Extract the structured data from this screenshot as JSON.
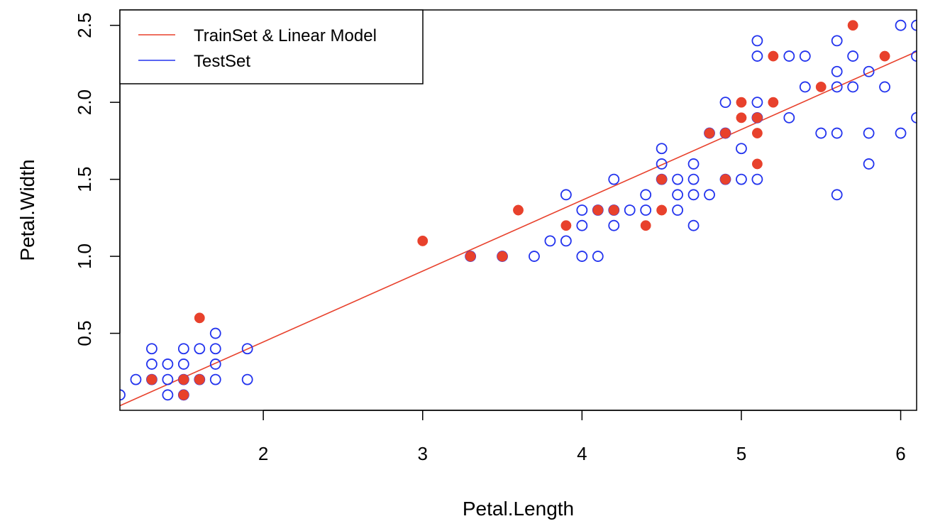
{
  "chart_data": {
    "type": "scatter",
    "title": "",
    "xlabel": "Petal.Length",
    "ylabel": "Petal.Width",
    "xlim": [
      1.1,
      6.1
    ],
    "ylim": [
      0.0,
      2.6
    ],
    "xticks": [
      2,
      3,
      4,
      5,
      6
    ],
    "yticks": [
      0.5,
      1.0,
      1.5,
      2.0,
      2.5
    ],
    "xtick_labels": [
      "2",
      "3",
      "4",
      "5",
      "6"
    ],
    "ytick_labels": [
      "0.5",
      "1.0",
      "1.5",
      "2.0",
      "2.5"
    ],
    "grid": false,
    "legend": {
      "position": "top-left",
      "entries": [
        {
          "label": "TrainSet & Linear Model",
          "color": "#e8412c"
        },
        {
          "label": "TestSet",
          "color": "#2233ee"
        }
      ]
    },
    "series": [
      {
        "name": "TrainSet & Linear Model",
        "marker": "filled-circle",
        "color": "#e8412c",
        "points": [
          [
            1.3,
            0.2
          ],
          [
            1.5,
            0.2
          ],
          [
            1.5,
            0.1
          ],
          [
            1.6,
            0.2
          ],
          [
            1.6,
            0.6
          ],
          [
            3.0,
            1.1
          ],
          [
            3.3,
            1.0
          ],
          [
            3.5,
            1.0
          ],
          [
            3.6,
            1.3
          ],
          [
            3.9,
            1.2
          ],
          [
            4.1,
            1.3
          ],
          [
            4.2,
            1.3
          ],
          [
            4.4,
            1.2
          ],
          [
            4.5,
            1.5
          ],
          [
            4.5,
            1.3
          ],
          [
            4.8,
            1.8
          ],
          [
            4.9,
            1.8
          ],
          [
            4.9,
            1.5
          ],
          [
            5.0,
            2.0
          ],
          [
            5.0,
            1.9
          ],
          [
            5.1,
            1.9
          ],
          [
            5.1,
            1.8
          ],
          [
            5.1,
            1.6
          ],
          [
            5.2,
            2.3
          ],
          [
            5.2,
            2.0
          ],
          [
            5.5,
            2.1
          ],
          [
            5.7,
            2.5
          ],
          [
            5.9,
            2.3
          ]
        ]
      },
      {
        "name": "TestSet",
        "marker": "open-circle",
        "color": "#2233ee",
        "points": [
          [
            1.1,
            0.1
          ],
          [
            1.2,
            0.2
          ],
          [
            1.3,
            0.2
          ],
          [
            1.3,
            0.3
          ],
          [
            1.3,
            0.4
          ],
          [
            1.4,
            0.1
          ],
          [
            1.4,
            0.2
          ],
          [
            1.4,
            0.3
          ],
          [
            1.5,
            0.1
          ],
          [
            1.5,
            0.2
          ],
          [
            1.5,
            0.3
          ],
          [
            1.5,
            0.4
          ],
          [
            1.6,
            0.2
          ],
          [
            1.6,
            0.4
          ],
          [
            1.7,
            0.2
          ],
          [
            1.7,
            0.3
          ],
          [
            1.7,
            0.4
          ],
          [
            1.7,
            0.5
          ],
          [
            1.9,
            0.2
          ],
          [
            1.9,
            0.4
          ],
          [
            3.3,
            1.0
          ],
          [
            3.5,
            1.0
          ],
          [
            3.7,
            1.0
          ],
          [
            3.8,
            1.1
          ],
          [
            3.9,
            1.1
          ],
          [
            3.9,
            1.4
          ],
          [
            4.0,
            1.0
          ],
          [
            4.0,
            1.2
          ],
          [
            4.0,
            1.3
          ],
          [
            4.1,
            1.0
          ],
          [
            4.1,
            1.3
          ],
          [
            4.2,
            1.2
          ],
          [
            4.2,
            1.3
          ],
          [
            4.2,
            1.5
          ],
          [
            4.3,
            1.3
          ],
          [
            4.4,
            1.3
          ],
          [
            4.4,
            1.4
          ],
          [
            4.5,
            1.5
          ],
          [
            4.5,
            1.6
          ],
          [
            4.5,
            1.7
          ],
          [
            4.6,
            1.3
          ],
          [
            4.6,
            1.4
          ],
          [
            4.6,
            1.5
          ],
          [
            4.7,
            1.2
          ],
          [
            4.7,
            1.4
          ],
          [
            4.7,
            1.5
          ],
          [
            4.7,
            1.6
          ],
          [
            4.8,
            1.4
          ],
          [
            4.8,
            1.8
          ],
          [
            4.9,
            1.5
          ],
          [
            4.9,
            1.8
          ],
          [
            4.9,
            2.0
          ],
          [
            5.0,
            1.5
          ],
          [
            5.0,
            1.7
          ],
          [
            5.1,
            1.5
          ],
          [
            5.1,
            1.9
          ],
          [
            5.1,
            2.0
          ],
          [
            5.1,
            2.3
          ],
          [
            5.1,
            2.4
          ],
          [
            5.3,
            1.9
          ],
          [
            5.3,
            2.3
          ],
          [
            5.4,
            2.1
          ],
          [
            5.4,
            2.3
          ],
          [
            5.5,
            1.8
          ],
          [
            5.6,
            1.4
          ],
          [
            5.6,
            1.8
          ],
          [
            5.6,
            2.1
          ],
          [
            5.6,
            2.2
          ],
          [
            5.6,
            2.4
          ],
          [
            5.7,
            2.1
          ],
          [
            5.7,
            2.3
          ],
          [
            5.8,
            1.6
          ],
          [
            5.8,
            1.8
          ],
          [
            5.8,
            2.2
          ],
          [
            5.9,
            2.1
          ],
          [
            6.0,
            1.8
          ],
          [
            6.0,
            2.5
          ],
          [
            6.1,
            1.9
          ],
          [
            6.1,
            2.3
          ],
          [
            6.1,
            2.5
          ]
        ]
      }
    ],
    "fit_line": {
      "name": "TrainSet & Linear Model",
      "color": "#e8412c",
      "x": [
        1.1,
        6.1
      ],
      "y": [
        0.03,
        2.33
      ]
    }
  }
}
